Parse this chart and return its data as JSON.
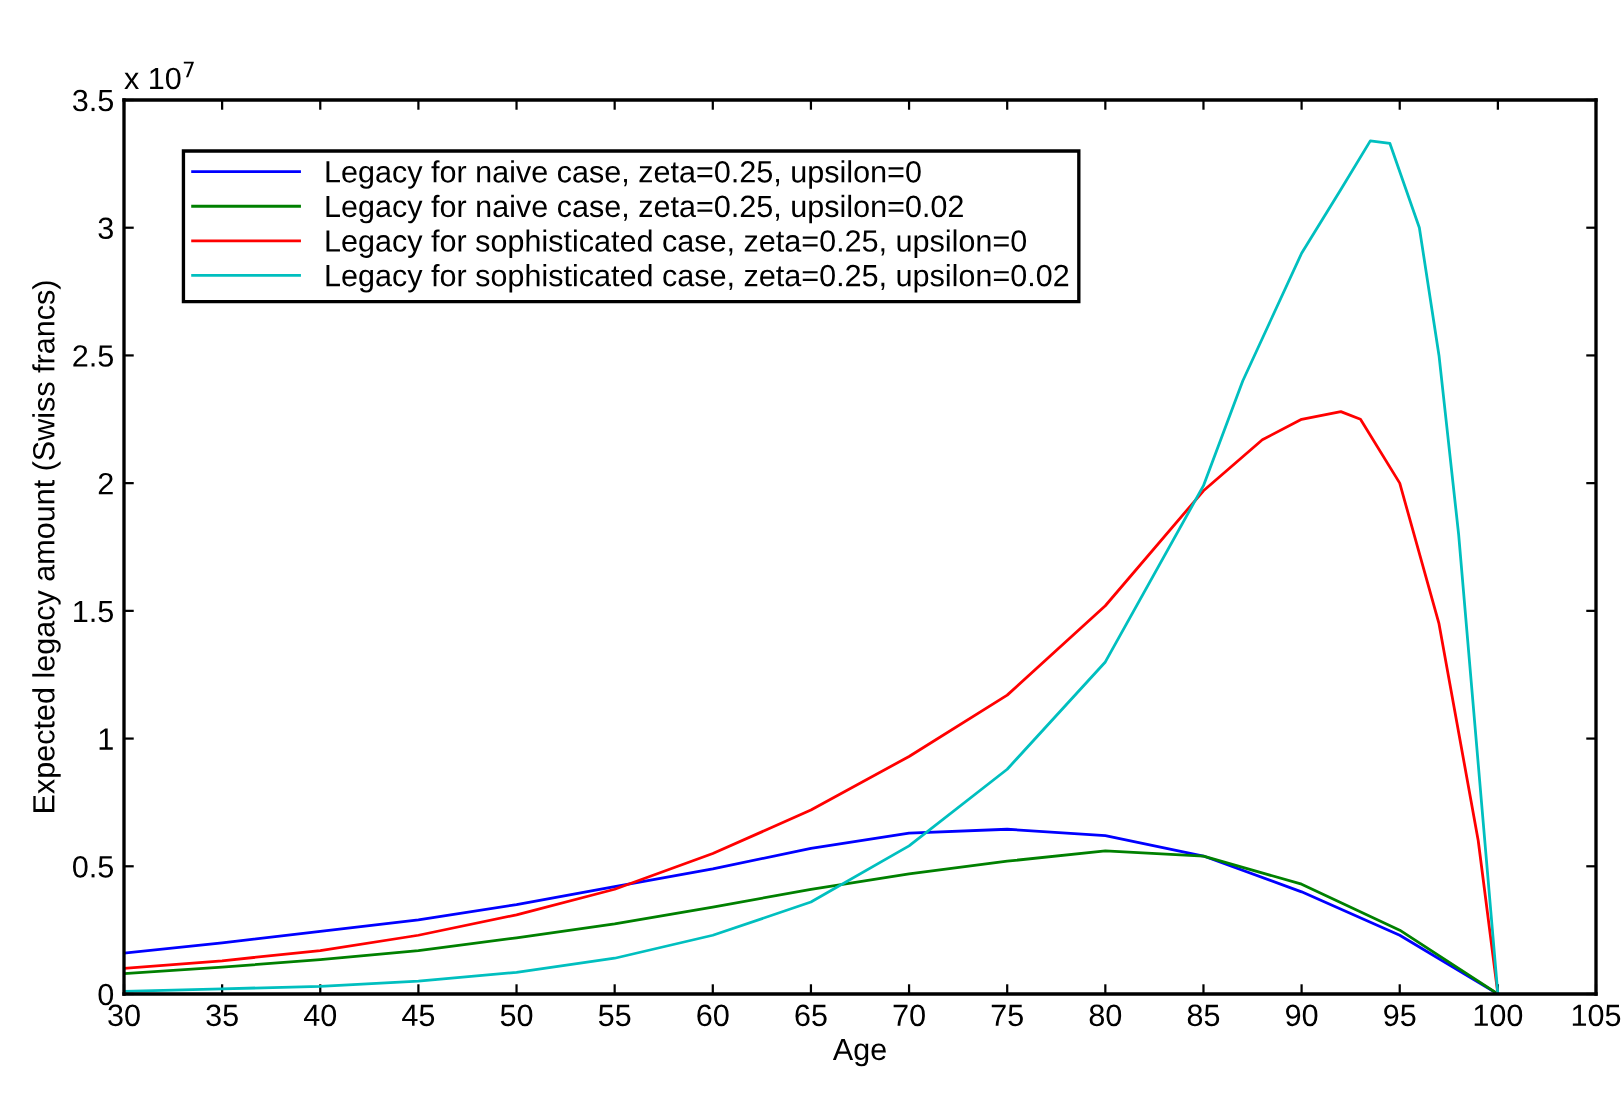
{
  "chart_data": {
    "type": "line",
    "xlabel": "Age",
    "ylabel": "Expected legacy amount (Swiss francs)",
    "annotations": [
      "x 10$^{7}$"
    ],
    "x": [
      30,
      35,
      40,
      45,
      50,
      55,
      60,
      65,
      70,
      75,
      80,
      85,
      90,
      95,
      100
    ],
    "series": [
      {
        "name": "Legacy for naive case, zeta=0.25, upsilon=0",
        "color": "#0000ff",
        "values": [
          0.16,
          0.2,
          0.245,
          0.29,
          0.35,
          0.42,
          0.49,
          0.57,
          0.63,
          0.645,
          0.62,
          0.54,
          0.4,
          0.23,
          0
        ]
      },
      {
        "name": "Legacy for naive case, zeta=0.25, upsilon=0.02",
        "color": "#008000",
        "values": [
          0.08,
          0.105,
          0.135,
          0.17,
          0.22,
          0.275,
          0.34,
          0.41,
          0.47,
          0.52,
          0.56,
          0.54,
          0.43,
          0.25,
          0
        ]
      },
      {
        "name": "Legacy for sophisticated case, zeta=0.25, upsilon=0",
        "color": "#ff0000",
        "x": [
          30,
          35,
          40,
          45,
          50,
          55,
          60,
          65,
          70,
          75,
          80,
          85,
          88,
          90,
          92,
          93,
          95,
          97,
          99,
          100
        ],
        "values": [
          0.1,
          0.13,
          0.17,
          0.23,
          0.31,
          0.41,
          0.55,
          0.72,
          0.93,
          1.17,
          1.52,
          1.97,
          2.17,
          2.25,
          2.28,
          2.25,
          2.0,
          1.45,
          0.6,
          0
        ]
      },
      {
        "name": "Legacy for sophisticated case, zeta=0.25, upsilon=0.02",
        "color": "#00bfbf",
        "x": [
          30,
          35,
          40,
          45,
          50,
          55,
          60,
          65,
          70,
          75,
          80,
          85,
          87,
          90,
          92,
          93.5,
          94.5,
          96,
          97,
          98,
          99,
          100
        ],
        "values": [
          0.01,
          0.02,
          0.03,
          0.05,
          0.085,
          0.14,
          0.23,
          0.36,
          0.58,
          0.88,
          1.3,
          1.99,
          2.4,
          2.9,
          3.15,
          3.34,
          3.33,
          3.0,
          2.5,
          1.8,
          0.9,
          0
        ]
      }
    ],
    "xlim": [
      30,
      105
    ],
    "xticks": [
      30,
      35,
      40,
      45,
      50,
      55,
      60,
      65,
      70,
      75,
      80,
      85,
      90,
      95,
      100,
      105
    ],
    "ylim": [
      0,
      3.5
    ],
    "yticks": [
      0,
      0.5,
      1,
      1.5,
      2,
      2.5,
      3,
      3.5
    ],
    "grid": false,
    "legend": "top left"
  }
}
